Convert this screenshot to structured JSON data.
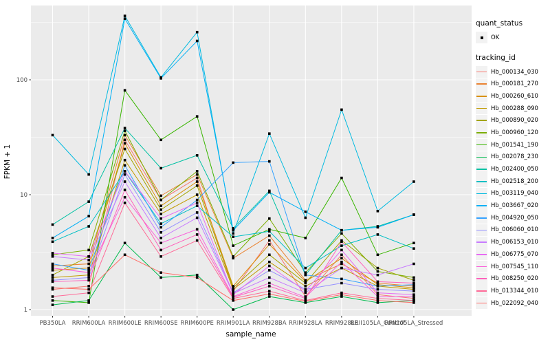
{
  "legend": {
    "quant_status_title": "quant_status",
    "quant_status_items": [
      {
        "label": "OK",
        "marker": "black-square"
      }
    ],
    "tracking_id_title": "tracking_id"
  },
  "chart_data": {
    "type": "line",
    "title": "",
    "xlabel": "sample_name",
    "ylabel": "FPKM + 1",
    "y_scale": "log10",
    "y_ticks": [
      1,
      10,
      100
    ],
    "ylim": [
      1,
      440
    ],
    "grid": "on",
    "panel_bg": "#EBEBEB",
    "grid_color": "#FFFFFF",
    "point_marker": {
      "shape": "square",
      "color": "#000000",
      "meaning": "OK"
    },
    "legend_position": "right",
    "categories": [
      "PB350LA",
      "RRIM600LA",
      "RRIM600LE",
      "RRIM600SE",
      "RRIM600PE",
      "RRIM901LA",
      "RRIM928BA",
      "RRIM928LA",
      "RRIM928LE",
      "RRII105LA_Control",
      "RRII105LA_Stressed"
    ],
    "series": [
      {
        "name": "Hb_000134_030",
        "color": "#F8766D",
        "values": [
          1.5,
          1.6,
          30,
          9.0,
          14,
          1.45,
          4.0,
          1.3,
          3.0,
          1.35,
          1.25
        ]
      },
      {
        "name": "Hb_000181_270",
        "color": "#EA8331",
        "values": [
          2.4,
          2.5,
          33,
          9.8,
          15,
          2.8,
          4.4,
          1.8,
          2.5,
          1.7,
          1.6
        ]
      },
      {
        "name": "Hb_000260_610",
        "color": "#D89000",
        "values": [
          2.2,
          2.3,
          28,
          8.0,
          13,
          1.6,
          3.7,
          1.75,
          2.8,
          1.65,
          1.55
        ]
      },
      {
        "name": "Hb_000288_090",
        "color": "#C09B00",
        "values": [
          1.9,
          2.0,
          20,
          6.8,
          10,
          1.5,
          2.6,
          1.6,
          2.3,
          1.6,
          1.5
        ]
      },
      {
        "name": "Hb_000890_020",
        "color": "#A3A500",
        "values": [
          2.0,
          2.9,
          25,
          7.4,
          12,
          1.55,
          3.0,
          1.7,
          4.0,
          2.3,
          1.8
        ]
      },
      {
        "name": "Hb_000960_120",
        "color": "#7CAE00",
        "values": [
          3.0,
          3.3,
          36,
          9.0,
          16,
          2.9,
          6.2,
          2.1,
          4.6,
          2.15,
          1.9
        ]
      },
      {
        "name": "Hb_001541_190",
        "color": "#39B600",
        "values": [
          1.2,
          1.15,
          81,
          30,
          48,
          3.6,
          5.0,
          4.2,
          14,
          3.0,
          3.8
        ]
      },
      {
        "name": "Hb_002078_230",
        "color": "#00BB4E",
        "values": [
          1.1,
          1.2,
          3.8,
          1.9,
          2.0,
          1.0,
          1.3,
          1.15,
          1.3,
          1.15,
          1.2
        ]
      },
      {
        "name": "Hb_002400_050",
        "color": "#00C1A3",
        "values": [
          5.5,
          8.7,
          38,
          17,
          22,
          5.1,
          10.8,
          2.0,
          4.9,
          5.3,
          6.7
        ]
      },
      {
        "name": "Hb_002518_200",
        "color": "#00BFC4",
        "values": [
          3.9,
          5.3,
          16,
          5.6,
          8.0,
          4.3,
          4.8,
          2.3,
          3.6,
          4.5,
          3.4
        ]
      },
      {
        "name": "Hb_003119_040",
        "color": "#00BAE0",
        "values": [
          33,
          15,
          360,
          105,
          260,
          4.6,
          34,
          6.3,
          55,
          7.2,
          13
        ]
      },
      {
        "name": "Hb_003667_020",
        "color": "#00B0F6",
        "values": [
          4.2,
          6.5,
          340,
          103,
          218,
          4.9,
          10.5,
          7.1,
          4.9,
          5.2,
          6.7
        ]
      },
      {
        "name": "Hb_004920_050",
        "color": "#35A2FF",
        "values": [
          2.5,
          2.2,
          18,
          5.2,
          9.0,
          19,
          19.5,
          2.0,
          1.85,
          1.6,
          1.65
        ]
      },
      {
        "name": "Hb_006060_010",
        "color": "#9590FF",
        "values": [
          1.8,
          1.9,
          15,
          4.7,
          7.0,
          1.4,
          2.2,
          1.5,
          1.7,
          1.5,
          1.45
        ]
      },
      {
        "name": "Hb_006153_010",
        "color": "#C77CFF",
        "values": [
          2.9,
          2.7,
          13,
          4.2,
          6.3,
          1.38,
          1.9,
          1.4,
          2.3,
          2.0,
          2.5
        ]
      },
      {
        "name": "Hb_006775_070",
        "color": "#E76BF3",
        "values": [
          3.1,
          2.9,
          16,
          6.2,
          8.5,
          1.35,
          2.4,
          1.45,
          3.3,
          1.4,
          1.35
        ]
      },
      {
        "name": "Hb_007545_110",
        "color": "#FA62DB",
        "values": [
          2.3,
          2.1,
          9.5,
          3.8,
          5.0,
          1.3,
          1.7,
          1.28,
          2.6,
          1.3,
          1.3
        ]
      },
      {
        "name": "Hb_008250_020",
        "color": "#FF62BC",
        "values": [
          1.75,
          1.8,
          11,
          3.3,
          4.5,
          1.28,
          1.6,
          1.25,
          3.9,
          1.75,
          1.7
        ]
      },
      {
        "name": "Hb_013344_010",
        "color": "#FF6A98",
        "values": [
          1.3,
          1.4,
          8.5,
          2.9,
          4.0,
          1.25,
          1.45,
          1.2,
          1.4,
          1.25,
          1.2
        ]
      },
      {
        "name": "Hb_022092_040",
        "color": "#FF6C67",
        "values": [
          1.55,
          1.5,
          3.0,
          2.1,
          1.9,
          1.2,
          1.37,
          1.18,
          1.35,
          1.2,
          1.15
        ]
      }
    ]
  }
}
